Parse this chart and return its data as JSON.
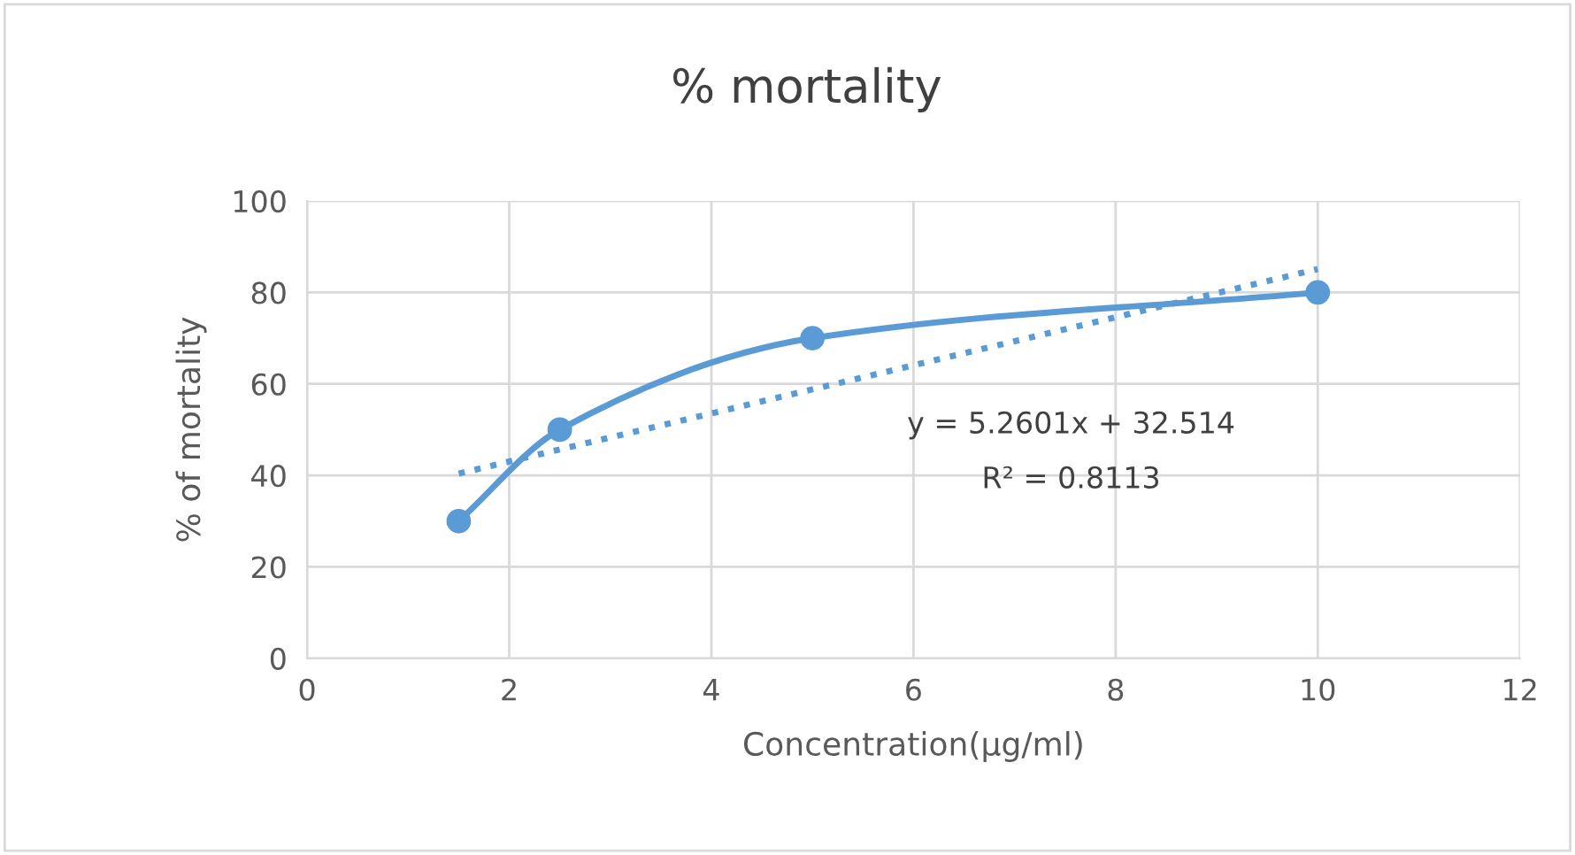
{
  "chart_data": {
    "type": "line",
    "title": "% mortality",
    "xlabel": "Concentration(µg/ml)",
    "ylabel": "% of mortality",
    "xlim": [
      0,
      12
    ],
    "xticks": [
      0,
      2,
      4,
      6,
      8,
      10,
      12
    ],
    "ylim": [
      0,
      100
    ],
    "yticks": [
      0,
      20,
      40,
      60,
      80,
      100
    ],
    "grid": true,
    "series": [
      {
        "x": [
          1.5,
          2.5,
          5,
          10
        ],
        "values": [
          30,
          50,
          70,
          80
        ],
        "color": "#5b9bd5",
        "marker": "circle",
        "line_style": "solid"
      },
      {
        "x": [
          1.5,
          10
        ],
        "values": [
          40.4,
          85.1
        ],
        "color": "#5b9bd5",
        "marker": "none",
        "line_style": "dotted"
      }
    ],
    "annotations": [
      "y = 5.2601x + 32.514",
      "R² = 0.8113"
    ]
  }
}
